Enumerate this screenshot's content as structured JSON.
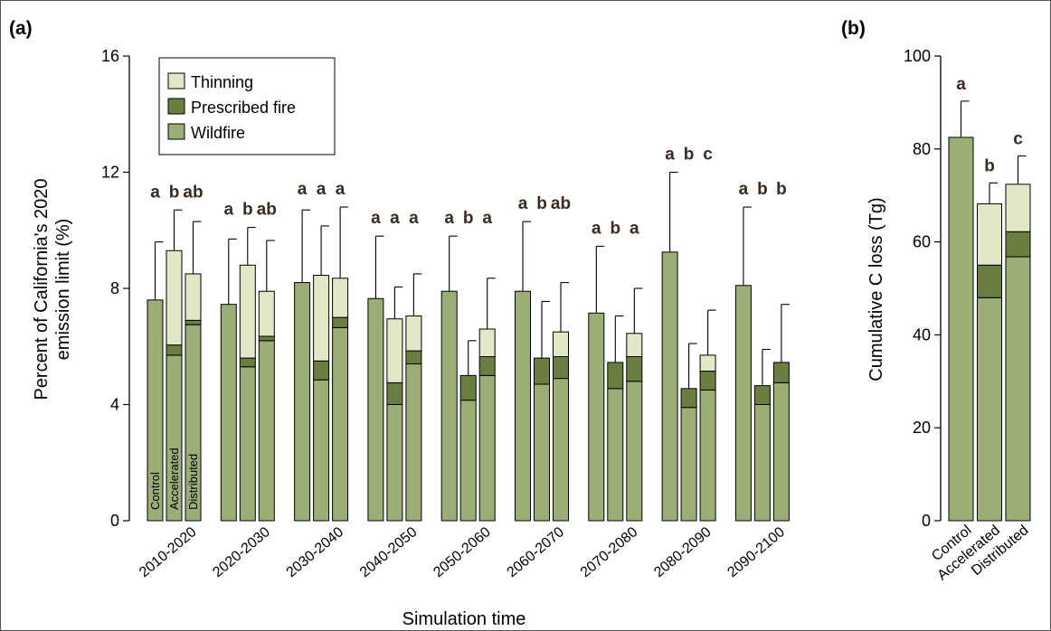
{
  "colors": {
    "wildfire": "#9cae78",
    "prescribed_fire": "#6a7e41",
    "thinning": "#e1e8c8"
  },
  "panel_a_label": "(a)",
  "panel_b_label": "(b)",
  "chart_data": [
    {
      "type": "bar",
      "stacked": true,
      "xlabel": "Simulation time",
      "ylabel_line1": "Percent of California's 2020",
      "ylabel_line2": "emission limit (%)",
      "ylim": [
        0,
        16
      ],
      "yticks": [
        0,
        4,
        8,
        12,
        16
      ],
      "legend": {
        "placement": "top-left",
        "entries": [
          "Thinning",
          "Prescribed fire",
          "Wildfire"
        ]
      },
      "scenarios": [
        "Control",
        "Accelerated",
        "Distributed"
      ],
      "categories": [
        "2010-2020",
        "2020-2030",
        "2030-2040",
        "2040-2050",
        "2050-2060",
        "2060-2070",
        "2070-2080",
        "2080-2090",
        "2090-2100"
      ],
      "series": [
        {
          "name": "Wildfire",
          "values": [
            [
              7.6,
              5.7,
              6.75
            ],
            [
              7.45,
              5.3,
              6.2
            ],
            [
              8.2,
              4.85,
              6.65
            ],
            [
              7.65,
              4.0,
              5.4
            ],
            [
              7.9,
              4.15,
              5.0
            ],
            [
              7.9,
              4.7,
              4.9
            ],
            [
              7.15,
              4.55,
              4.8
            ],
            [
              9.25,
              3.9,
              4.5
            ],
            [
              8.1,
              4.0,
              4.75
            ]
          ]
        },
        {
          "name": "Prescribed fire",
          "values": [
            [
              0,
              0.35,
              0.15
            ],
            [
              0,
              0.3,
              0.15
            ],
            [
              0,
              0.65,
              0.35
            ],
            [
              0,
              0.75,
              0.45
            ],
            [
              0,
              0.85,
              0.65
            ],
            [
              0,
              0.9,
              0.75
            ],
            [
              0,
              0.9,
              0.85
            ],
            [
              0,
              0.65,
              0.65
            ],
            [
              0,
              0.65,
              0.7
            ]
          ]
        },
        {
          "name": "Thinning",
          "values": [
            [
              0,
              3.25,
              1.6
            ],
            [
              0,
              3.2,
              1.55
            ],
            [
              0,
              2.95,
              1.35
            ],
            [
              0,
              2.2,
              1.2
            ],
            [
              0,
              0,
              0.95
            ],
            [
              0,
              0,
              0.85
            ],
            [
              0,
              0,
              0.8
            ],
            [
              0,
              0,
              0.55
            ],
            [
              0,
              0,
              0
            ]
          ]
        }
      ],
      "error_top": [
        [
          9.6,
          10.7,
          10.3
        ],
        [
          9.7,
          10.1,
          9.65
        ],
        [
          10.7,
          10.15,
          10.8
        ],
        [
          9.8,
          8.05,
          8.5
        ],
        [
          9.8,
          6.2,
          8.35
        ],
        [
          10.3,
          7.55,
          8.2
        ],
        [
          9.45,
          7.05,
          8.0
        ],
        [
          12.0,
          6.1,
          7.25
        ],
        [
          10.8,
          5.9,
          7.45
        ]
      ],
      "significance": [
        [
          "a",
          "b",
          "ab"
        ],
        [
          "a",
          "b",
          "ab"
        ],
        [
          "a",
          "a",
          "a"
        ],
        [
          "a",
          "a",
          "a"
        ],
        [
          "a",
          "b",
          "a"
        ],
        [
          "a",
          "b",
          "ab"
        ],
        [
          "a",
          "b",
          "a"
        ],
        [
          "a",
          "b",
          "c"
        ],
        [
          "a",
          "b",
          "b"
        ]
      ]
    },
    {
      "type": "bar",
      "stacked": true,
      "ylabel": "Cumulative C loss (Tg)",
      "ylim": [
        0,
        100
      ],
      "yticks": [
        0,
        20,
        40,
        60,
        80,
        100
      ],
      "categories": [
        "Control",
        "Accelerated",
        "Distributed"
      ],
      "series": [
        {
          "name": "Wildfire",
          "values": [
            82.5,
            48.0,
            56.8
          ]
        },
        {
          "name": "Prescribed fire",
          "values": [
            0,
            7.0,
            5.4
          ]
        },
        {
          "name": "Thinning",
          "values": [
            0,
            13.2,
            10.2
          ]
        }
      ],
      "error_top": [
        90.3,
        72.7,
        78.5
      ],
      "significance": [
        "a",
        "b",
        "c"
      ]
    }
  ]
}
